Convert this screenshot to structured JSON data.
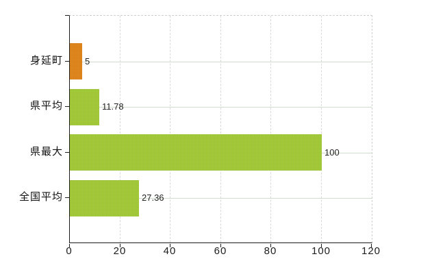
{
  "chart_data": {
    "type": "bar",
    "orientation": "horizontal",
    "title": "",
    "xlabel": "",
    "ylabel": "",
    "categories": [
      "身延町",
      "県平均",
      "県最大",
      "全国平均"
    ],
    "values": [
      5,
      11.78,
      100,
      27.36
    ],
    "value_labels": [
      "5",
      "11.78",
      "100",
      "27.36"
    ],
    "bar_colors": [
      "#e08214",
      "#a1ca32",
      "#a1ca32",
      "#a1ca32"
    ],
    "xlim": [
      0,
      120
    ],
    "x_ticks": [
      0,
      20,
      40,
      60,
      80,
      100,
      120
    ],
    "x_tick_labels": [
      "0",
      "20",
      "40",
      "60",
      "80",
      "100",
      "120"
    ],
    "grid": true,
    "legend": "none"
  },
  "colors": {
    "background": "#ffffff",
    "axis_line": "#1a1a1a",
    "grid_vertical": "#d9d9d9",
    "grid_horizontal": "#d2dccd",
    "border_dashed": "#cfcfcf",
    "bar_orange": "#e08214",
    "bar_green": "#a1ca32",
    "text": "#1c1c1c"
  }
}
